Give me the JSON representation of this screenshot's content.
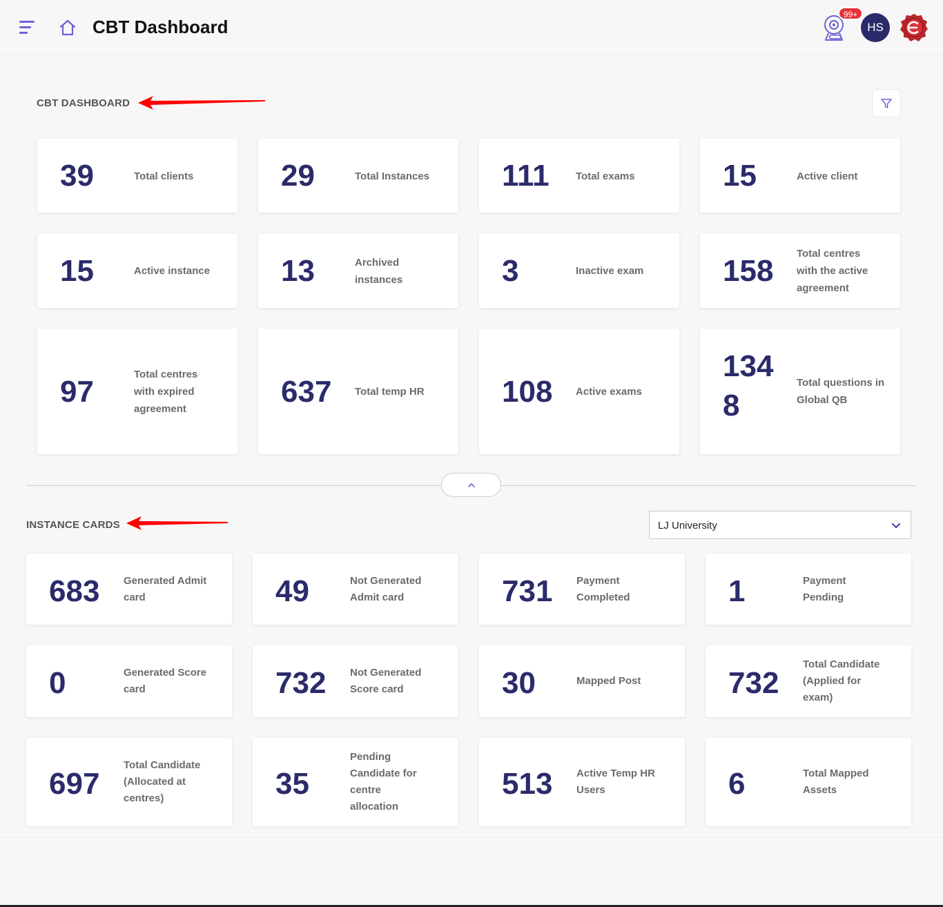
{
  "header": {
    "title": "CBT Dashboard",
    "notification_count": "99+",
    "avatar_initials": "HS",
    "menu_icon": "hamburger-icon",
    "home_icon": "home-icon",
    "notification_icon": "webcam-icon",
    "logo_icon": "wax-seal-logo-icon"
  },
  "colors": {
    "accent": "#6c63d6",
    "number": "#2b2b6b",
    "badge": "#e8323a",
    "arrow": "#ff0000"
  },
  "dashboard": {
    "title": "CBT DASHBOARD",
    "filter_icon": "filter-icon",
    "cards": [
      {
        "value": "39",
        "label": "Total clients"
      },
      {
        "value": "29",
        "label": "Total Instances"
      },
      {
        "value": "111",
        "label": "Total exams"
      },
      {
        "value": "15",
        "label": "Active client"
      },
      {
        "value": "15",
        "label": "Active instance"
      },
      {
        "value": "13",
        "label": "Archived instances"
      },
      {
        "value": "3",
        "label": "Inactive exam"
      },
      {
        "value": "158",
        "label": "Total centres with the active agreement"
      },
      {
        "value": "97",
        "label": "Total centres with expired agreement"
      },
      {
        "value": "637",
        "label": "Total temp HR"
      },
      {
        "value": "108",
        "label": "Active exams"
      },
      {
        "value": "1348",
        "label": "Total questions in Global QB"
      }
    ]
  },
  "collapse_icon": "chevron-up-icon",
  "instance": {
    "title": "INSTANCE CARDS",
    "selected_instance": "LJ University",
    "dropdown_icon": "chevron-down-icon",
    "cards": [
      {
        "value": "683",
        "label": "Generated Admit card"
      },
      {
        "value": "49",
        "label": "Not Generated Admit card"
      },
      {
        "value": "731",
        "label": "Payment Completed"
      },
      {
        "value": "1",
        "label": "Payment Pending"
      },
      {
        "value": "0",
        "label": "Generated Score card"
      },
      {
        "value": "732",
        "label": "Not Generated Score card"
      },
      {
        "value": "30",
        "label": "Mapped Post"
      },
      {
        "value": "732",
        "label": "Total Candidate (Applied for exam)"
      },
      {
        "value": "697",
        "label": "Total Candidate (Allocated at centres)"
      },
      {
        "value": "35",
        "label": "Pending Candidate for centre allocation"
      },
      {
        "value": "513",
        "label": "Active Temp HR Users"
      },
      {
        "value": "6",
        "label": "Total Mapped Assets"
      }
    ]
  }
}
